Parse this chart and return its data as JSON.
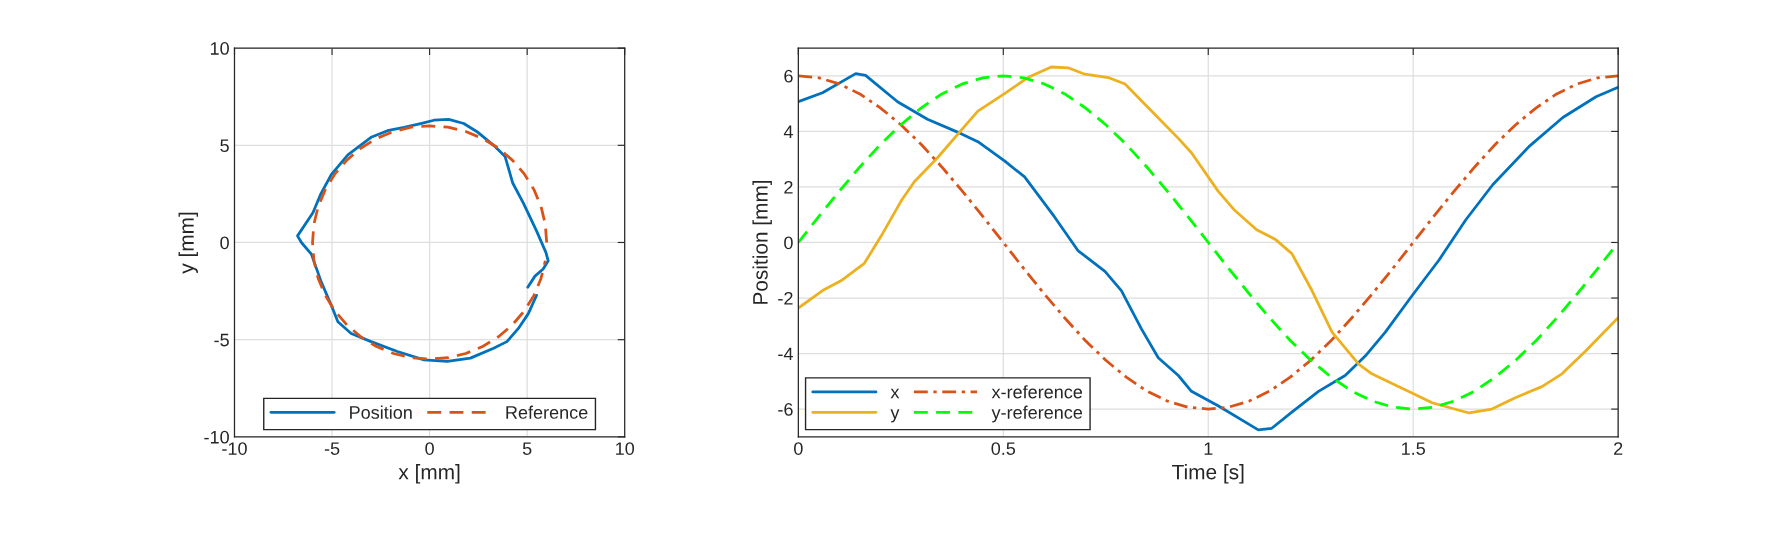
{
  "chart_data": [
    {
      "type": "line",
      "xlabel": "x [mm]",
      "ylabel": "y [mm]",
      "xlim": [
        -10,
        10
      ],
      "ylim": [
        -10,
        10
      ],
      "xticks": [
        -10,
        -5,
        0,
        5,
        10
      ],
      "yticks": [
        -10,
        -5,
        0,
        5,
        10
      ],
      "grid": true,
      "legend": "bottom",
      "series": [
        {
          "name": "Position",
          "color": "#0072bd",
          "line_style": "solid",
          "x": [
            5.03,
            5.4,
            5.82,
            6.08,
            5.96,
            5.48,
            4.8,
            4.26,
            3.87,
            3.36,
            2.43,
            1.75,
            0.98,
            0.22,
            -0.46,
            -1.31,
            -2.16,
            -3.0,
            -4.19,
            -5.04,
            -5.59,
            -5.98,
            -6.77,
            -6.57,
            -6.06,
            -5.55,
            -5.04,
            -4.7,
            -4.02,
            -3.0,
            -1.65,
            -0.29,
            0.9,
            2.09,
            3.28,
            3.96,
            4.55,
            5.06,
            5.48
          ],
          "values": [
            -2.3,
            -1.73,
            -1.36,
            -0.94,
            -0.51,
            0.6,
            2.04,
            3.06,
            4.42,
            4.93,
            5.7,
            6.12,
            6.33,
            6.29,
            6.12,
            5.92,
            5.75,
            5.41,
            4.51,
            3.49,
            2.47,
            1.53,
            0.34,
            0,
            -0.6,
            -2.04,
            -3.23,
            -4.08,
            -4.68,
            -5.1,
            -5.61,
            -6.04,
            -6.12,
            -5.95,
            -5.44,
            -5.1,
            -4.42,
            -3.66,
            -2.72
          ]
        },
        {
          "name": "Reference",
          "color": "#d95319",
          "line_style": "dashed",
          "x": [
            6,
            5.93,
            5.71,
            5.35,
            4.85,
            4.24,
            3.53,
            2.72,
            1.85,
            0.94,
            0,
            -0.94,
            -1.85,
            -2.72,
            -3.53,
            -4.24,
            -4.85,
            -5.35,
            -5.71,
            -5.93,
            -6,
            -5.93,
            -5.71,
            -5.35,
            -4.85,
            -4.24,
            -3.53,
            -2.72,
            -1.85,
            -0.94,
            0,
            0.94,
            1.85,
            2.72,
            3.53,
            4.24,
            4.85,
            5.35,
            5.71,
            5.93
          ],
          "values": [
            0,
            0.94,
            1.85,
            2.72,
            3.53,
            4.24,
            4.85,
            5.35,
            5.71,
            5.93,
            6,
            5.93,
            5.71,
            5.35,
            4.85,
            4.24,
            3.53,
            2.72,
            1.85,
            0.94,
            0,
            -0.94,
            -1.85,
            -2.72,
            -3.53,
            -4.24,
            -4.85,
            -5.35,
            -5.71,
            -5.93,
            -6,
            -5.93,
            -5.71,
            -5.35,
            -4.85,
            -4.24,
            -3.53,
            -2.72,
            -1.85,
            -0.94
          ]
        }
      ]
    },
    {
      "type": "line",
      "xlabel": "Time [s]",
      "ylabel": "Position [mm]",
      "xlim": [
        0,
        2
      ],
      "ylim": [
        -7,
        7
      ],
      "xticks": [
        0,
        0.5,
        1,
        1.5,
        2
      ],
      "yticks": [
        -6,
        -4,
        -2,
        0,
        2,
        4,
        6
      ],
      "grid": true,
      "legend": "bottom left",
      "series": [
        {
          "name": "x",
          "color": "#0072bd",
          "line_style": "solid",
          "x": [
            0,
            0.059,
            0.14,
            0.164,
            0.242,
            0.315,
            0.397,
            0.438,
            0.503,
            0.552,
            0.625,
            0.682,
            0.748,
            0.788,
            0.837,
            0.878,
            0.927,
            0.959,
            1.024,
            1.122,
            1.155,
            1.204,
            1.269,
            1.334,
            1.383,
            1.432,
            1.498,
            1.563,
            1.628,
            1.694,
            1.783,
            1.865,
            1.946,
            2.0
          ],
          "values": [
            5.07,
            5.39,
            6.08,
            6.02,
            5.07,
            4.44,
            3.92,
            3.63,
            2.94,
            2.36,
            0.92,
            -0.29,
            -1.04,
            -1.73,
            -3.11,
            -4.15,
            -4.79,
            -5.36,
            -5.88,
            -6.75,
            -6.69,
            -6.11,
            -5.36,
            -4.79,
            -4.09,
            -3.23,
            -1.9,
            -0.63,
            0.81,
            2.08,
            3.46,
            4.5,
            5.25,
            5.59
          ]
        },
        {
          "name": "y",
          "color": "#edb120",
          "line_style": "solid",
          "x": [
            0,
            0.059,
            0.104,
            0.161,
            0.202,
            0.251,
            0.283,
            0.34,
            0.397,
            0.438,
            0.503,
            0.56,
            0.617,
            0.658,
            0.699,
            0.756,
            0.797,
            0.87,
            0.927,
            0.959,
            1.024,
            1.065,
            1.118,
            1.163,
            1.204,
            1.253,
            1.302,
            1.367,
            1.399,
            1.456,
            1.497,
            1.546,
            1.636,
            1.692,
            1.749,
            1.814,
            1.863,
            1.92,
            2.0
          ],
          "values": [
            -2.36,
            -1.73,
            -1.38,
            -0.75,
            0.23,
            1.5,
            2.19,
            3.06,
            4.04,
            4.73,
            5.36,
            5.94,
            6.32,
            6.29,
            6.06,
            5.94,
            5.71,
            4.61,
            3.75,
            3.23,
            1.85,
            1.15,
            0.46,
            0.12,
            -0.4,
            -1.73,
            -3.23,
            -4.38,
            -4.73,
            -5.13,
            -5.42,
            -5.77,
            -6.14,
            -6.0,
            -5.59,
            -5.19,
            -4.73,
            -3.92,
            -2.71
          ]
        },
        {
          "name": "x-reference",
          "color": "#d95319",
          "line_style": "dashdot",
          "x": [
            0,
            0.05,
            0.1,
            0.15,
            0.2,
            0.25,
            0.3,
            0.35,
            0.4,
            0.45,
            0.5,
            0.55,
            0.6,
            0.65,
            0.7,
            0.75,
            0.8,
            0.85,
            0.9,
            0.95,
            1.0,
            1.05,
            1.1,
            1.15,
            1.2,
            1.25,
            1.3,
            1.35,
            1.4,
            1.45,
            1.5,
            1.55,
            1.6,
            1.65,
            1.7,
            1.75,
            1.8,
            1.85,
            1.9,
            1.95,
            2.0
          ],
          "values": [
            6,
            5.93,
            5.71,
            5.35,
            4.85,
            4.24,
            3.53,
            2.72,
            1.85,
            0.94,
            0,
            -0.94,
            -1.85,
            -2.72,
            -3.53,
            -4.24,
            -4.85,
            -5.35,
            -5.71,
            -5.93,
            -6,
            -5.93,
            -5.71,
            -5.35,
            -4.85,
            -4.24,
            -3.53,
            -2.72,
            -1.85,
            -0.94,
            0,
            0.94,
            1.85,
            2.72,
            3.53,
            4.24,
            4.85,
            5.35,
            5.71,
            5.93,
            6
          ]
        },
        {
          "name": "y-reference",
          "color": "#00ff00",
          "line_style": "dashed",
          "x": [
            0,
            0.05,
            0.1,
            0.15,
            0.2,
            0.25,
            0.3,
            0.35,
            0.4,
            0.45,
            0.5,
            0.55,
            0.6,
            0.65,
            0.7,
            0.75,
            0.8,
            0.85,
            0.9,
            0.95,
            1.0,
            1.05,
            1.1,
            1.15,
            1.2,
            1.25,
            1.3,
            1.35,
            1.4,
            1.45,
            1.5,
            1.55,
            1.6,
            1.65,
            1.7,
            1.75,
            1.8,
            1.85,
            1.9,
            1.95,
            2.0
          ],
          "values": [
            0,
            0.94,
            1.85,
            2.72,
            3.53,
            4.24,
            4.85,
            5.35,
            5.71,
            5.93,
            6,
            5.93,
            5.71,
            5.35,
            4.85,
            4.24,
            3.53,
            2.72,
            1.85,
            0.94,
            0,
            -0.94,
            -1.85,
            -2.72,
            -3.53,
            -4.24,
            -4.85,
            -5.35,
            -5.71,
            -5.93,
            -6,
            -5.93,
            -5.71,
            -5.35,
            -4.85,
            -4.24,
            -3.53,
            -2.72,
            -1.85,
            -0.94,
            0
          ]
        }
      ]
    }
  ]
}
